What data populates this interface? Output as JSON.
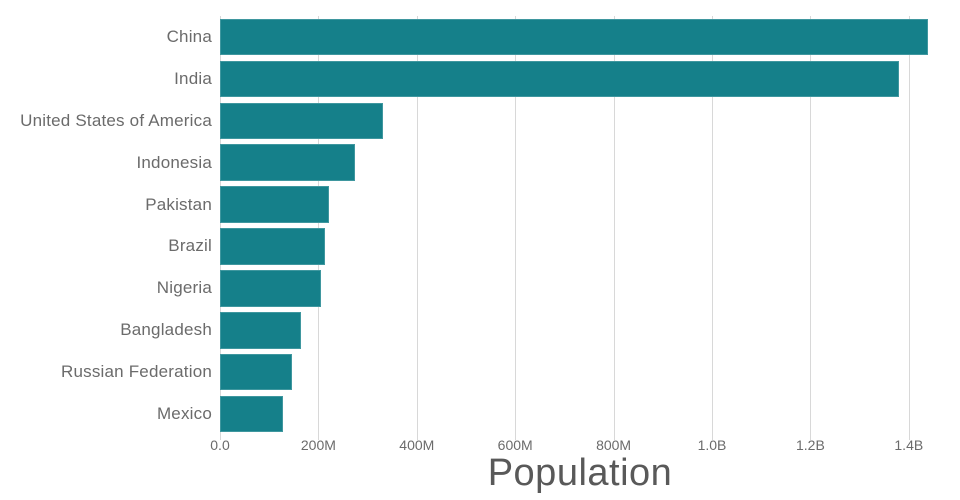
{
  "colors": {
    "bar": "#15808a",
    "grid": "#d8d8d8",
    "tick_text": "#6b6b6b",
    "title_text": "#595959",
    "background": "#ffffff"
  },
  "chart_data": {
    "type": "bar",
    "orientation": "horizontal",
    "title": "",
    "xlabel": "Population",
    "ylabel": "",
    "grid": "vertical",
    "legend": "none",
    "xlim_millions": [
      0,
      1500
    ],
    "categories": [
      "China",
      "India",
      "United States of America",
      "Indonesia",
      "Pakistan",
      "Brazil",
      "Nigeria",
      "Bangladesh",
      "Russian Federation",
      "Mexico"
    ],
    "values_millions": [
      1439.3,
      1380.0,
      331.0,
      273.5,
      220.9,
      212.6,
      206.1,
      164.7,
      145.9,
      128.9
    ],
    "x_ticks": [
      {
        "label": "0.0",
        "value_millions": 0
      },
      {
        "label": "200M",
        "value_millions": 200
      },
      {
        "label": "400M",
        "value_millions": 400
      },
      {
        "label": "600M",
        "value_millions": 600
      },
      {
        "label": "800M",
        "value_millions": 800
      },
      {
        "label": "1.0B",
        "value_millions": 1000
      },
      {
        "label": "1.2B",
        "value_millions": 1200
      },
      {
        "label": "1.4B",
        "value_millions": 1400
      }
    ]
  }
}
